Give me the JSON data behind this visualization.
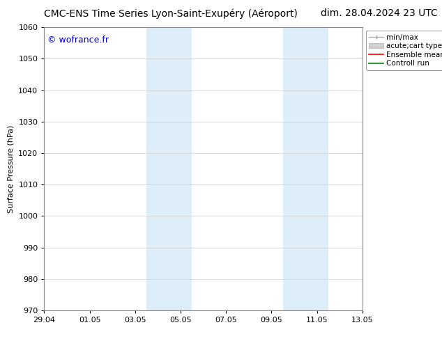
{
  "title_left": "CMC-ENS Time Series Lyon-Saint-Exupéry (Aéroport)",
  "title_right": "dim. 28.04.2024 23 UTC",
  "ylabel": "Surface Pressure (hPa)",
  "watermark": "© wofrance.fr",
  "watermark_color": "#0000cc",
  "ylim": [
    970,
    1060
  ],
  "yticks": [
    970,
    980,
    990,
    1000,
    1010,
    1020,
    1030,
    1040,
    1050,
    1060
  ],
  "xtick_labels": [
    "29.04",
    "01.05",
    "03.05",
    "05.05",
    "07.05",
    "09.05",
    "11.05",
    "13.05"
  ],
  "xtick_positions": [
    0,
    2,
    4,
    6,
    8,
    10,
    12,
    14
  ],
  "xmin": 0,
  "xmax": 14,
  "shaded_regions": [
    {
      "xmin": 4.5,
      "xmax": 6.5,
      "color": "#ddeef9"
    },
    {
      "xmin": 10.5,
      "xmax": 12.5,
      "color": "#ddeef9"
    }
  ],
  "background_color": "#ffffff",
  "plot_bg_color": "#ffffff",
  "grid_color": "#cccccc",
  "tick_label_fontsize": 8,
  "title_fontsize": 10,
  "legend_fontsize": 7.5,
  "ylabel_fontsize": 8
}
